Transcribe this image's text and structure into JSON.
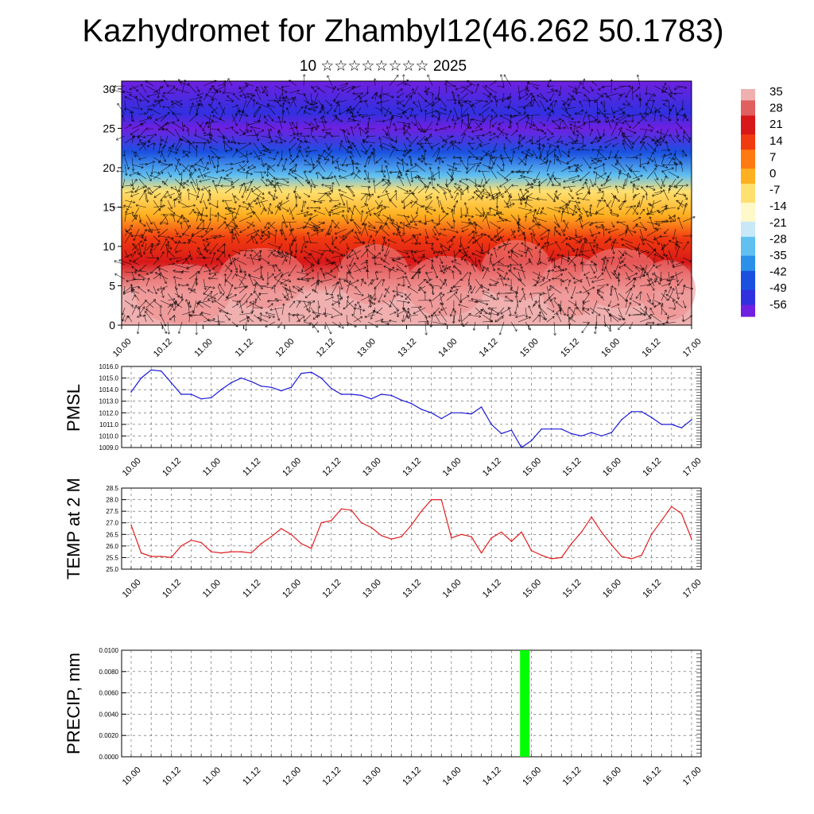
{
  "title": "Kazhydromet for Zhambyl12(46.262 50.1783)",
  "subtitle": "10 ☆☆☆☆☆☆☆☆ 2025",
  "colors": {
    "pmsl_line": "#1a1ad6",
    "temp_line": "#e02020",
    "precip_bar": "#00ff00",
    "vector": "#000000"
  },
  "chart_data": [
    {
      "type": "heatmap",
      "name": "height-time cross-section",
      "x_tick_labels": [
        "10.00",
        "10.12",
        "11.00",
        "11.12",
        "12.00",
        "12.12",
        "13.00",
        "13.12",
        "14.00",
        "14.12",
        "15.00",
        "15.12",
        "16.00",
        "16.12",
        "17.00"
      ],
      "y_ticks": [
        0,
        5,
        10,
        15,
        20,
        25,
        30
      ],
      "ylim": [
        0,
        31
      ],
      "colorbar_labels": [
        "35",
        "28",
        "21",
        "14",
        "7",
        "0",
        "-7",
        "-14",
        "-21",
        "-28",
        "-35",
        "-42",
        "-49",
        "-56"
      ],
      "colorbar_colors": [
        "#f0b0b0",
        "#e06060",
        "#d81818",
        "#f03a10",
        "#ff7a10",
        "#ffb020",
        "#ffe070",
        "#fff8c8",
        "#c8e8f8",
        "#60c0f0",
        "#2a90e8",
        "#1a50e0",
        "#3030e0",
        "#7020e0"
      ],
      "field_by_height": [
        {
          "height": 0,
          "value": 32
        },
        {
          "height": 4,
          "value": 33
        },
        {
          "height": 8,
          "value": 22
        },
        {
          "height": 11,
          "value": 14
        },
        {
          "height": 14,
          "value": 3
        },
        {
          "height": 17,
          "value": -10
        },
        {
          "height": 19,
          "value": -25
        },
        {
          "height": 22,
          "value": -42
        },
        {
          "height": 25,
          "value": -55
        },
        {
          "height": 27,
          "value": -52
        },
        {
          "height": 31,
          "value": -57
        }
      ],
      "vectors": "wind arrows across whole field"
    },
    {
      "type": "line",
      "ylabel": "PMSL",
      "ylim": [
        1009.0,
        1016.0
      ],
      "y_tick_labels": [
        "1009.0",
        "1010.0",
        "1011.0",
        "1012.0",
        "1013.0",
        "1014.0",
        "1015.0",
        "1016.0"
      ],
      "x_tick_labels": [
        "10.00",
        "10.12",
        "11.00",
        "11.12",
        "12.00",
        "12.12",
        "13.00",
        "13.12",
        "14.00",
        "14.12",
        "15.00",
        "15.12",
        "16.00",
        "16.12",
        "17.00"
      ],
      "x_hours": [
        0,
        3,
        6,
        9,
        12,
        15,
        18,
        21,
        24,
        27,
        30,
        33,
        36,
        39,
        42,
        45,
        48,
        51,
        54,
        57,
        60,
        63,
        66,
        69,
        72,
        75,
        78,
        81,
        84,
        87,
        90,
        93,
        96,
        99,
        102,
        105,
        108,
        111,
        114,
        117,
        120,
        123,
        126,
        129,
        132,
        135,
        138,
        141,
        144,
        147,
        150,
        153,
        156,
        159,
        162,
        165,
        168
      ],
      "series": [
        {
          "values": [
            1013.8,
            1015.0,
            1015.7,
            1015.6,
            1014.6,
            1013.6,
            1013.6,
            1013.2,
            1013.3,
            1014.0,
            1014.6,
            1015.0,
            1014.7,
            1014.3,
            1014.2,
            1013.9,
            1014.2,
            1015.4,
            1015.5,
            1015.0,
            1014.1,
            1013.6,
            1013.6,
            1013.5,
            1013.2,
            1013.6,
            1013.5,
            1013.1,
            1012.8,
            1012.3,
            1012.0,
            1011.5,
            1012.0,
            1012.0,
            1011.9,
            1012.5,
            1011.0,
            1010.2,
            1010.5,
            1009.0,
            1009.6,
            1010.6,
            1010.6,
            1010.6,
            1010.2,
            1010.0,
            1010.3,
            1010.0,
            1010.3,
            1011.4,
            1012.1,
            1012.1,
            1011.6,
            1011.0,
            1011.0,
            1010.7,
            1011.4
          ]
        }
      ]
    },
    {
      "type": "line",
      "ylabel": "TEMP at 2 M",
      "ylim": [
        25.0,
        28.5
      ],
      "y_tick_labels": [
        "25.0",
        "25.5",
        "26.0",
        "26.5",
        "27.0",
        "27.5",
        "28.0",
        "28.5"
      ],
      "x_tick_labels": [
        "10.00",
        "10.12",
        "11.00",
        "11.12",
        "12.00",
        "12.12",
        "13.00",
        "13.12",
        "14.00",
        "14.12",
        "15.00",
        "15.12",
        "16.00",
        "16.12",
        "17.00"
      ],
      "x_hours": [
        0,
        3,
        6,
        9,
        12,
        15,
        18,
        21,
        24,
        27,
        30,
        33,
        36,
        39,
        42,
        45,
        48,
        51,
        54,
        57,
        60,
        63,
        66,
        69,
        72,
        75,
        78,
        81,
        84,
        87,
        90,
        93,
        96,
        99,
        102,
        105,
        108,
        111,
        114,
        117,
        120,
        123,
        126,
        129,
        132,
        135,
        138,
        141,
        144,
        147,
        150,
        153,
        156,
        159,
        162,
        165,
        168
      ],
      "series": [
        {
          "values": [
            26.9,
            25.7,
            25.55,
            25.55,
            25.5,
            26.0,
            26.25,
            26.15,
            25.75,
            25.7,
            25.75,
            25.75,
            25.7,
            26.1,
            26.4,
            26.75,
            26.5,
            26.1,
            25.9,
            27.0,
            27.1,
            27.6,
            27.55,
            27.0,
            26.8,
            26.45,
            26.3,
            26.4,
            26.9,
            27.5,
            28.0,
            28.0,
            26.35,
            26.5,
            26.4,
            25.7,
            26.35,
            26.6,
            26.2,
            26.6,
            25.8,
            25.6,
            25.45,
            25.5,
            26.1,
            26.6,
            27.25,
            26.6,
            26.05,
            25.55,
            25.45,
            25.6,
            26.5,
            27.1,
            27.7,
            27.4,
            26.3
          ]
        }
      ]
    },
    {
      "type": "bar",
      "ylabel": "PRECIP, mm",
      "ylim": [
        0,
        0.01
      ],
      "y_tick_labels": [
        "0.0000",
        "0.0020",
        "0.0040",
        "0.0060",
        "0.0080",
        "0.0100"
      ],
      "x_tick_labels": [
        "10.00",
        "10.12",
        "11.00",
        "11.12",
        "12.00",
        "12.12",
        "13.00",
        "13.12",
        "14.00",
        "14.12",
        "15.00",
        "15.12",
        "16.00",
        "16.12",
        "17.00"
      ],
      "bars": [
        {
          "x_hour": 118,
          "value": 0.01
        }
      ]
    }
  ]
}
